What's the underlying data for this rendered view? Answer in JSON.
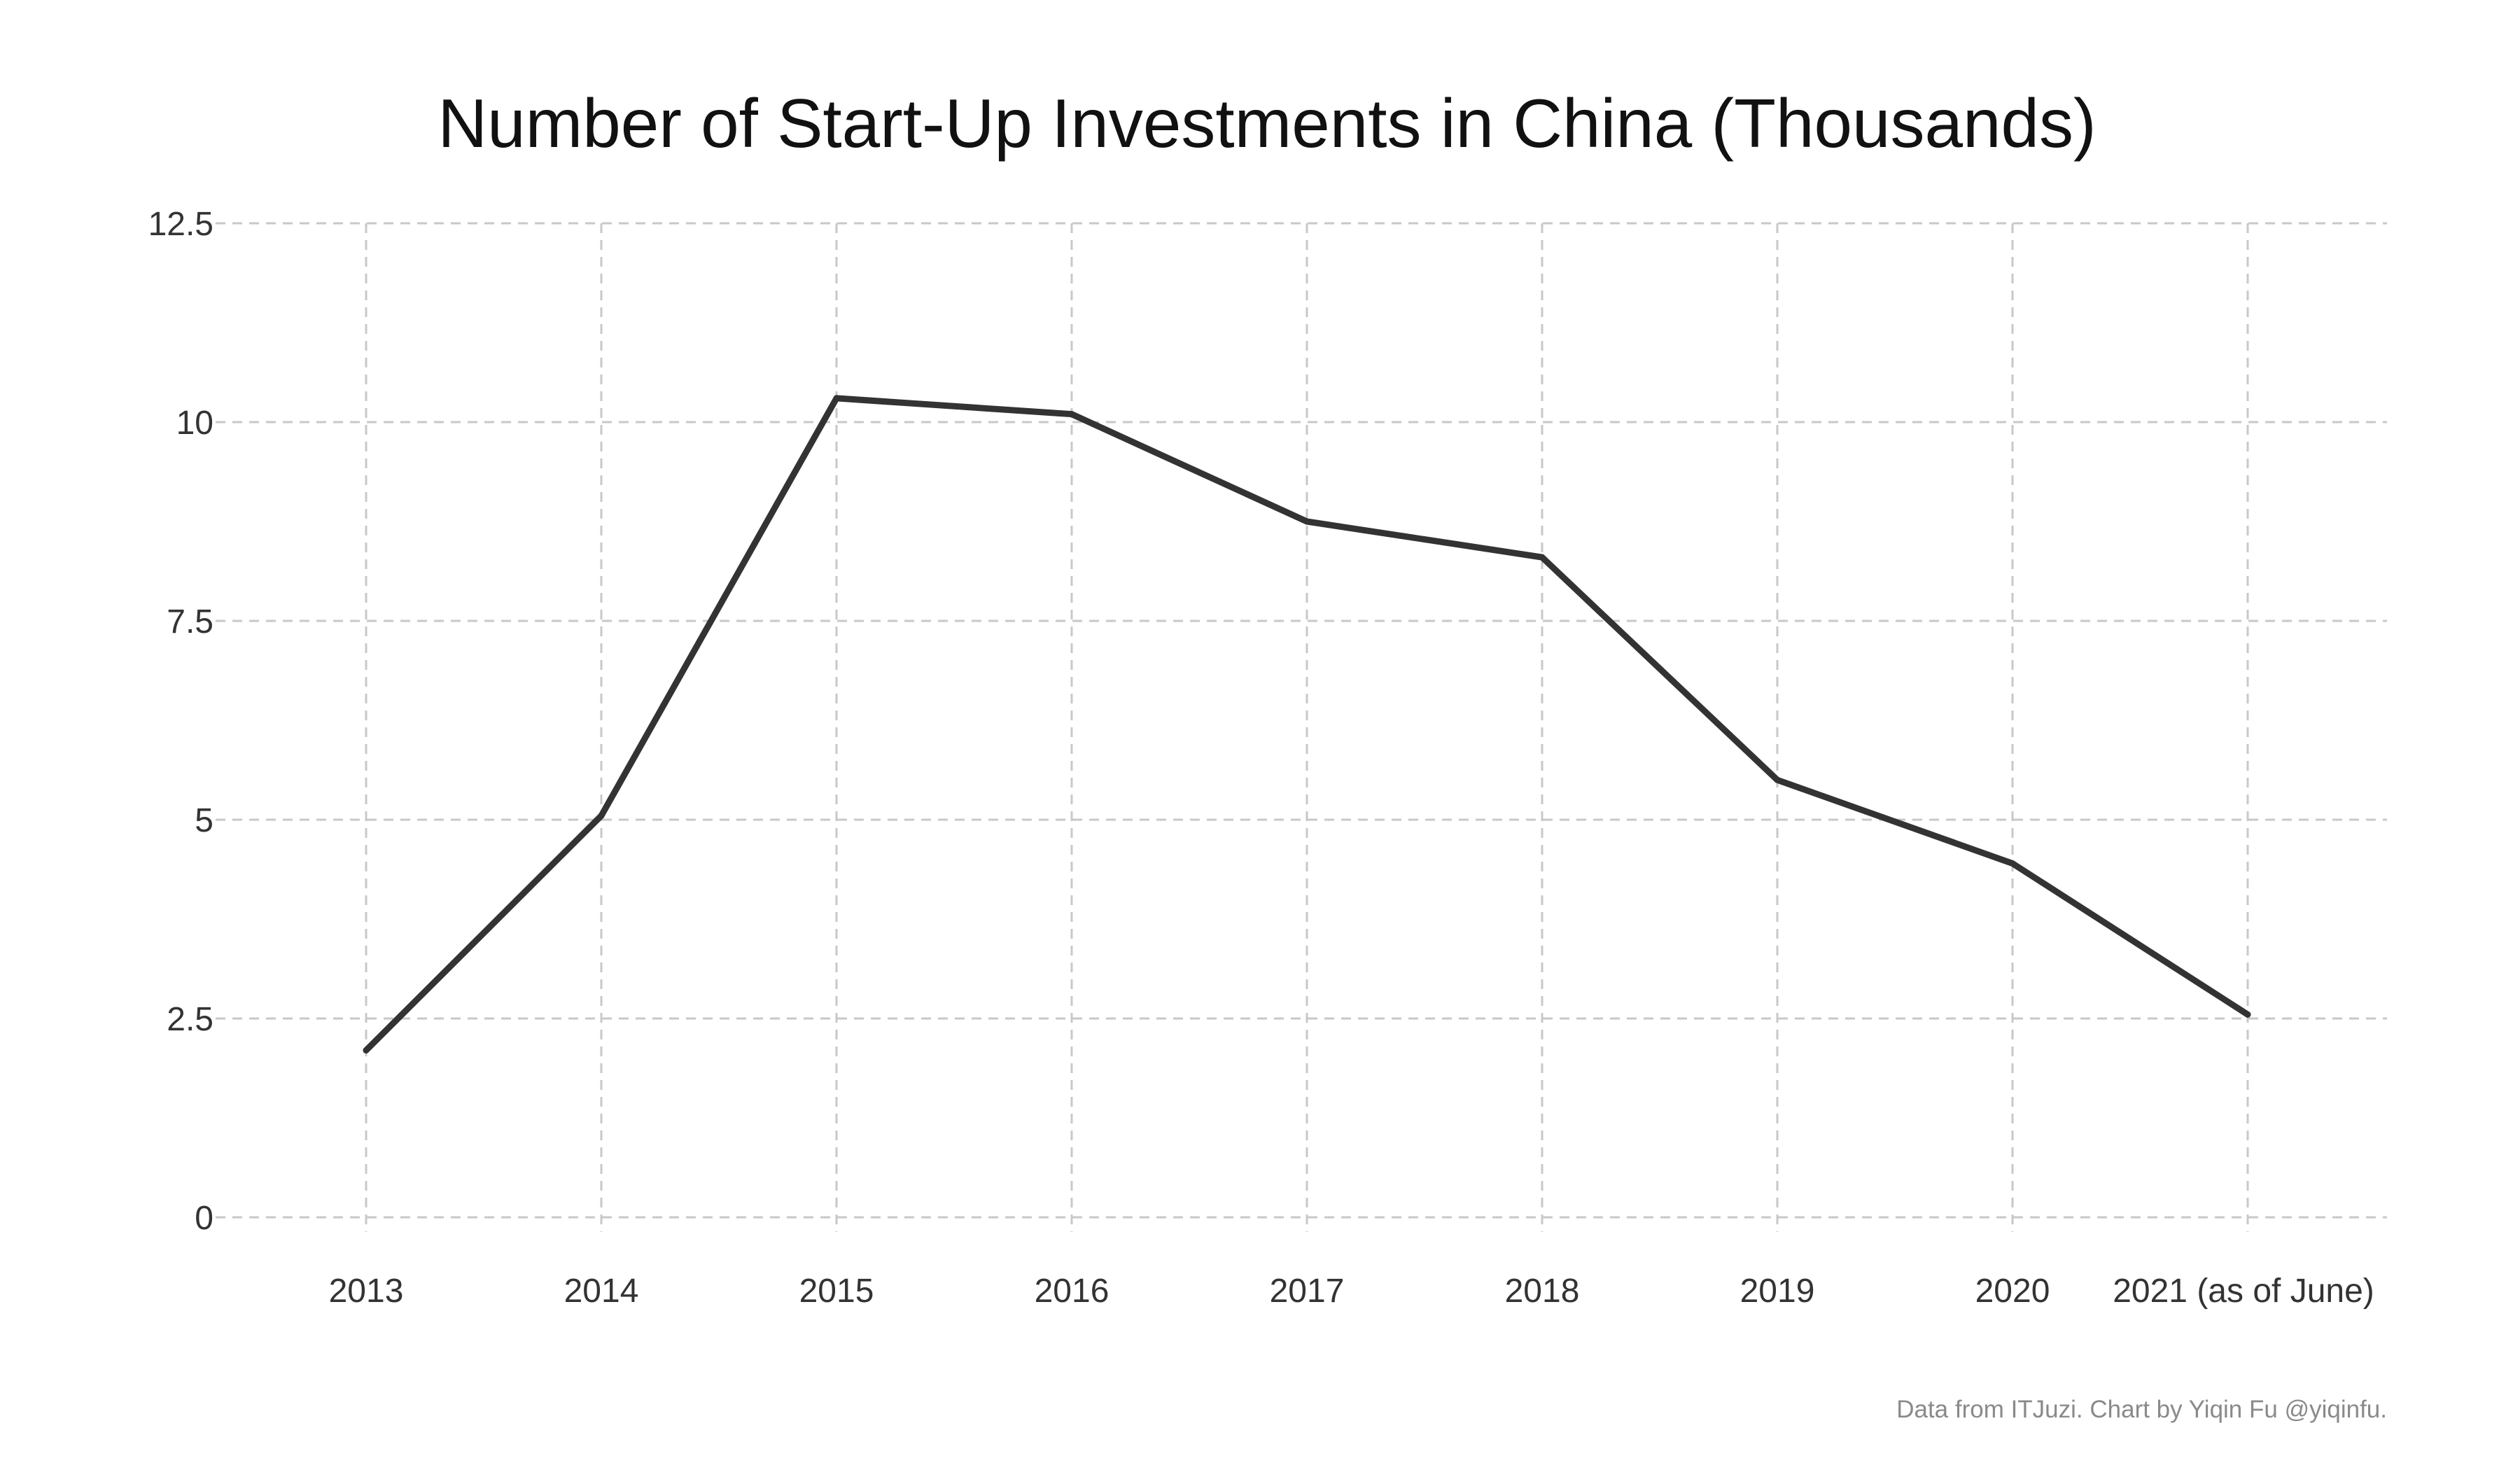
{
  "chart_data": {
    "type": "line",
    "title": "Number of Start-Up Investments in China (Thousands)",
    "xlabel": "",
    "ylabel": "",
    "categories": [
      "2013",
      "2014",
      "2015",
      "2016",
      "2017",
      "2018",
      "2019",
      "2020",
      "2021 (as of June)"
    ],
    "series": [
      {
        "values": [
          2.1,
          5.05,
          10.3,
          10.1,
          8.75,
          8.3,
          5.5,
          4.45,
          2.55
        ],
        "color": "#333333"
      }
    ],
    "ylim": [
      0,
      12.5
    ],
    "yticks": [
      0,
      2.5,
      5,
      7.5,
      10,
      12.5
    ],
    "ytick_labels": [
      "0",
      "2.5",
      "5",
      "7.5",
      "10",
      "12.5"
    ],
    "grid": true,
    "legend": "none",
    "caption": "Data from ITJuzi. Chart by Yiqin Fu @yiqinfu."
  }
}
